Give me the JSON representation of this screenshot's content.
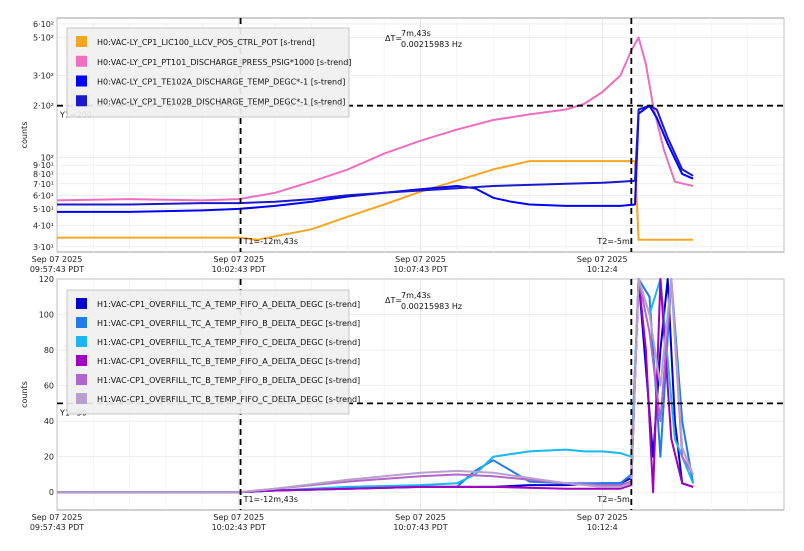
{
  "chart_data": [
    {
      "type": "line",
      "ylabel": "counts",
      "yscale": "log",
      "ylim": [
        28,
        650
      ],
      "tick_labels": [
        "6·10²",
        "5·10²",
        "3·10²",
        "2·10²",
        "10²",
        "9·10¹",
        "8·10¹",
        "7·10¹",
        "6·10¹",
        "5·10¹",
        "4·10¹",
        "3·10¹"
      ],
      "tick_values": [
        600,
        500,
        300,
        200,
        100,
        90,
        80,
        70,
        60,
        50,
        40,
        30
      ],
      "x_minutes": [
        0,
        5,
        10,
        15,
        20
      ],
      "xticks": [
        {
          "date": "Sep 07 2025",
          "time": "09:57:43 PDT"
        },
        {
          "date": "Sep 07 2025",
          "time": "10:02:43 PDT"
        },
        {
          "date": "Sep 07 2025",
          "time": "10:07:43 PDT"
        },
        {
          "date": "Sep 07 2025",
          "time": "10:12:4"
        }
      ],
      "cursors": {
        "t1_label": "T1=-12m,43s",
        "t2_label": "T2=-5m",
        "y1_label": "Y1=200",
        "y1_value": 200,
        "delta_label": "ΔT=",
        "delta_line1": "7m,43s",
        "delta_line2": "0.00215983 Hz"
      },
      "series": [
        {
          "name": "H0:VAC-LY_CP1_LIC100_LLCV_POS_CTRL_POT [s-trend]",
          "color": "#f5a623",
          "x": [
            0,
            3,
            5,
            5.5,
            7,
            8,
            9,
            10,
            11,
            12,
            13,
            14,
            15,
            15.9,
            16,
            17.5
          ],
          "y": [
            34,
            34,
            34,
            33,
            38,
            45,
            53,
            63,
            73,
            85,
            95,
            95,
            95,
            95,
            33,
            33
          ]
        },
        {
          "name": "H0:VAC-LY_CP1_PT101_DISCHARGE_PRESS_PSIG*1000 [s-trend]",
          "color": "#f06ebe",
          "x": [
            0,
            2,
            4,
            5,
            6,
            7,
            8,
            9,
            10,
            11,
            12,
            13,
            14,
            14.5,
            15,
            15.5,
            15.8,
            16,
            16.2,
            16.4,
            16.7,
            17,
            17.5
          ],
          "y": [
            56,
            57,
            56,
            57,
            62,
            72,
            85,
            105,
            125,
            145,
            165,
            178,
            190,
            205,
            240,
            300,
            420,
            500,
            350,
            200,
            110,
            72,
            68
          ]
        },
        {
          "name": "H0:VAC-LY_CP1_TE102A_DISCHARGE_TEMP_DEGC*-1 [s-trend]",
          "color": "#0000ff",
          "x": [
            0,
            2,
            4,
            5,
            6,
            7,
            8,
            9,
            10,
            11,
            11.5,
            12,
            12.5,
            13,
            14,
            15,
            15.5,
            15.9,
            16,
            16.3,
            16.5,
            16.8,
            17.2,
            17.5
          ],
          "y": [
            48,
            48,
            49,
            50,
            52,
            55,
            59,
            62,
            65,
            68,
            66,
            58,
            55,
            53,
            52,
            52,
            52,
            53,
            180,
            200,
            170,
            120,
            80,
            75
          ]
        },
        {
          "name": "H0:VAC-LY_CP1_TE102B_DISCHARGE_TEMP_DEGC*-1 [s-trend]",
          "color": "#1a1acc",
          "x": [
            0,
            2,
            4,
            5,
            6,
            7,
            8,
            9,
            10,
            11,
            12,
            13,
            14,
            15,
            15.5,
            15.9,
            16,
            16.3,
            16.5,
            16.8,
            17.2,
            17.5
          ],
          "y": [
            53,
            53,
            54,
            54,
            55,
            57,
            60,
            62,
            64,
            66,
            68,
            69,
            70,
            71,
            72,
            73,
            190,
            200,
            190,
            130,
            85,
            78
          ]
        }
      ]
    },
    {
      "type": "line",
      "ylabel": "counts",
      "ylim": [
        -10,
        120
      ],
      "tick_labels": [
        "120",
        "100",
        "80",
        "60",
        "40",
        "20",
        "0"
      ],
      "tick_values": [
        120,
        100,
        80,
        60,
        40,
        20,
        0
      ],
      "x_minutes": [
        0,
        5,
        10,
        15,
        20
      ],
      "xticks": [
        {
          "date": "Sep 07 2025",
          "time": "09:57:43 PDT"
        },
        {
          "date": "Sep 07 2025",
          "time": "10:02:43 PDT"
        },
        {
          "date": "Sep 07 2025",
          "time": "10:07:43 PDT"
        },
        {
          "date": "Sep 07 2025",
          "time": "10:12:4"
        }
      ],
      "cursors": {
        "t1_label": "T1=-12m,43s",
        "t2_label": "T2=-5m",
        "y1_label": "Y1=50",
        "y1_value": 50,
        "delta_label": "ΔT=",
        "delta_line1": "7m,43s",
        "delta_line2": "0.00215983 Hz"
      },
      "series": [
        {
          "name": "H1:VAC-CP1_OVERFILL_TC_A_TEMP_FIFO_A_DELTA_DEGC [s-trend]",
          "color": "#0000cc",
          "x": [
            0,
            5,
            6,
            8,
            10,
            11,
            12,
            13,
            14,
            15,
            15.5,
            15.8,
            16,
            16.2,
            16.4,
            16.6,
            16.8,
            17,
            17.2,
            17.5
          ],
          "y": [
            0,
            0,
            1,
            2,
            3,
            3,
            3,
            4,
            4,
            5,
            5,
            8,
            120,
            70,
            20,
            80,
            120,
            40,
            5,
            3
          ]
        },
        {
          "name": "H1:VAC-CP1_OVERFILL_TC_A_TEMP_FIFO_B_DELTA_DEGC [s-trend]",
          "color": "#1e7ce8",
          "x": [
            0,
            5,
            6,
            8,
            10,
            11,
            11.5,
            12,
            12.5,
            13,
            14,
            15,
            15.5,
            15.8,
            16,
            16.3,
            16.6,
            16.9,
            17.2,
            17.5
          ],
          "y": [
            0,
            0,
            1,
            2,
            3,
            3,
            12,
            18,
            12,
            6,
            5,
            5,
            5,
            10,
            120,
            110,
            20,
            120,
            40,
            5
          ]
        },
        {
          "name": "H1:VAC-CP1_OVERFILL_TC_A_TEMP_FIFO_C_DELTA_DEGC [s-trend]",
          "color": "#1ab8f0",
          "x": [
            0,
            5,
            6,
            8,
            10,
            11,
            11.5,
            12,
            13,
            14,
            14.5,
            15,
            15.5,
            15.8,
            16,
            16.3,
            16.6,
            17,
            17.5
          ],
          "y": [
            0,
            0,
            1,
            3,
            4,
            5,
            10,
            20,
            23,
            24,
            23,
            23,
            22,
            20,
            120,
            100,
            120,
            30,
            5
          ]
        },
        {
          "name": "H1:VAC-CP1_OVERFILL_TC_B_TEMP_FIFO_A_DELTA_DEGC [s-trend]",
          "color": "#a000c0",
          "x": [
            0,
            5,
            6,
            8,
            10,
            12,
            14,
            15,
            15.5,
            15.8,
            16,
            16.2,
            16.4,
            16.6,
            16.9,
            17.2,
            17.5
          ],
          "y": [
            0,
            0,
            1,
            2,
            3,
            3,
            2,
            2,
            2,
            4,
            120,
            80,
            0,
            120,
            30,
            5,
            3
          ]
        },
        {
          "name": "H1:VAC-CP1_OVERFILL_TC_B_TEMP_FIFO_B_DELTA_DEGC [s-trend]",
          "color": "#b066cc",
          "x": [
            0,
            5,
            6,
            8,
            10,
            11,
            12,
            13,
            14,
            15,
            15.5,
            15.8,
            16,
            16.3,
            16.6,
            16.9,
            17.2,
            17.5
          ],
          "y": [
            0,
            0,
            2,
            6,
            9,
            10,
            9,
            7,
            5,
            4,
            4,
            6,
            120,
            90,
            40,
            120,
            20,
            10
          ]
        },
        {
          "name": "H1:VAC-CP1_OVERFILL_TC_B_TEMP_FIFO_C_DELTA_DEGC [s-trend]",
          "color": "#b8a0cc",
          "x": [
            0,
            5,
            6,
            8,
            10,
            11,
            12,
            13,
            14,
            15,
            15.5,
            15.8,
            16,
            16.3,
            16.6,
            16.9,
            17.2,
            17.5
          ],
          "y": [
            0,
            0,
            2,
            7,
            11,
            12,
            11,
            8,
            5,
            3,
            3,
            5,
            120,
            100,
            60,
            120,
            25,
            10
          ]
        }
      ]
    }
  ]
}
